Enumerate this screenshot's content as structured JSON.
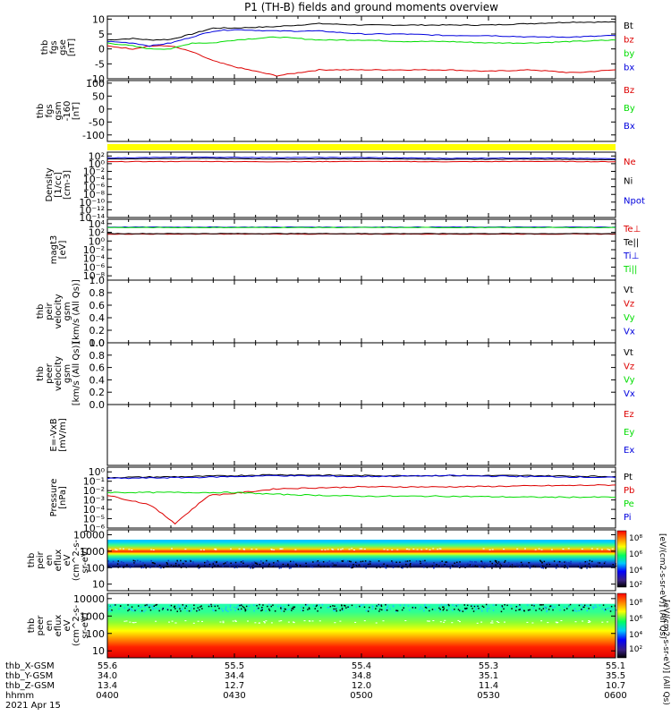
{
  "title": "P1 (TH-B) fields and ground moments overview",
  "colors": {
    "black": "#000000",
    "red": "#dd0000",
    "green": "#00dd00",
    "blue": "#0000dd",
    "yellow": "#ffff00"
  },
  "time_axis": {
    "ticks": [
      "0400",
      "0430",
      "0500",
      "0530",
      "0600"
    ],
    "row_labels": [
      "thb_X-GSM",
      "thb_Y-GSM",
      "thb_Z-GSM",
      "hhmm",
      "2021 Apr 15"
    ],
    "rows": [
      [
        "55.6",
        "55.5",
        "55.4",
        "55.3",
        "55.1"
      ],
      [
        "34.0",
        "34.4",
        "34.8",
        "35.1",
        "35.5"
      ],
      [
        "13.4",
        "12.7",
        "12.0",
        "11.4",
        "10.7"
      ],
      [
        "0400",
        "0430",
        "0500",
        "0530",
        "0600"
      ]
    ]
  },
  "colorbar": {
    "title": "[eV/(cm2-s-sr-eV)] (All Qs)",
    "title_upper": "[eV/(cm2-s-sr-eV)] (All Qs)",
    "ticks": [
      "10⁸",
      "10⁶",
      "10⁴",
      "10²"
    ],
    "ticks_lower": [
      "10⁸",
      "10⁶",
      "10⁴",
      "10²"
    ]
  },
  "chart_data": [
    {
      "id": "fgs",
      "type": "line",
      "ylabel_lines": [
        "thb",
        "fgs",
        "gse",
        "[nT]"
      ],
      "ylim": [
        -10,
        11
      ],
      "yticks": [
        "10",
        "5",
        "0",
        "-5",
        "-10"
      ],
      "ytick_values": [
        10,
        5,
        0,
        -5,
        -10
      ],
      "series": [
        {
          "name": "Bt",
          "color": "#000000",
          "x": [
            0,
            6,
            10,
            15,
            20,
            25,
            30,
            40,
            50,
            60,
            70,
            80,
            90,
            100,
            110,
            120
          ],
          "values": [
            3,
            3.5,
            3,
            3.2,
            5,
            7,
            7,
            7.5,
            8.5,
            8,
            8,
            8,
            8,
            8.5,
            9,
            9
          ]
        },
        {
          "name": "bz",
          "color": "#dd0000",
          "x": [
            0,
            6,
            10,
            15,
            20,
            25,
            30,
            40,
            50,
            60,
            70,
            80,
            90,
            100,
            110,
            120
          ],
          "values": [
            1,
            0,
            1,
            1,
            -1,
            -4,
            -6,
            -9,
            -7,
            -7,
            -7,
            -7,
            -7.5,
            -7,
            -8,
            -7
          ]
        },
        {
          "name": "by",
          "color": "#00dd00",
          "x": [
            0,
            6,
            10,
            15,
            20,
            25,
            30,
            40,
            50,
            60,
            70,
            80,
            90,
            100,
            110,
            120
          ],
          "values": [
            2,
            1,
            0,
            0,
            2,
            2,
            3,
            4,
            3,
            3,
            2.5,
            2.5,
            2,
            2,
            2.5,
            3
          ]
        },
        {
          "name": "bx",
          "color": "#0000dd",
          "x": [
            0,
            6,
            10,
            15,
            20,
            25,
            30,
            40,
            50,
            60,
            70,
            80,
            90,
            100,
            110,
            120
          ],
          "values": [
            2.5,
            2,
            1,
            2,
            4,
            6,
            6.5,
            6,
            6,
            5,
            5,
            4.5,
            4.5,
            4,
            4,
            4.5
          ]
        }
      ]
    },
    {
      "id": "fgs_gsm",
      "type": "line",
      "ylabel_lines": [
        "thb",
        "fgs",
        "gsm",
        "-160",
        "[nT]"
      ],
      "ylim": [
        -125,
        110
      ],
      "yticks": [
        "100",
        "50",
        "0",
        "-50",
        "-100"
      ],
      "ytick_values": [
        100,
        50,
        0,
        -50,
        -100
      ],
      "series": [
        {
          "name": "Bz",
          "color": "#dd0000",
          "x": [],
          "values": []
        },
        {
          "name": "By",
          "color": "#00dd00",
          "x": [],
          "values": []
        },
        {
          "name": "Bx",
          "color": "#0000dd",
          "x": [],
          "values": []
        }
      ]
    },
    {
      "id": "density",
      "type": "line",
      "log": true,
      "ylabel_lines": [
        "Density",
        "[1/cc]",
        "[cm-3]"
      ],
      "ylim": [
        -14,
        3
      ],
      "yticks": [
        "10²",
        "10⁰",
        "10⁻²",
        "10⁻⁴",
        "10⁻⁶",
        "10⁻⁸",
        "10⁻¹⁰",
        "10⁻¹²",
        "10⁻¹⁴"
      ],
      "ytick_values": [
        2,
        0,
        -2,
        -4,
        -6,
        -8,
        -10,
        -12,
        -14
      ],
      "series": [
        {
          "name": "Ne",
          "color": "#dd0000",
          "x": [
            0,
            20,
            40,
            60,
            80,
            100,
            120
          ],
          "values": [
            0.5,
            0.6,
            0.5,
            0.6,
            0.5,
            0.6,
            0.5
          ]
        },
        {
          "name": "Ni",
          "color": "#000000",
          "x": [
            0,
            20,
            40,
            60,
            80,
            100,
            120
          ],
          "values": [
            1.2,
            1.4,
            1.2,
            1.3,
            1.1,
            1.2,
            1.0
          ]
        },
        {
          "name": "Npot",
          "color": "#0000dd",
          "x": [
            0,
            20,
            40,
            60,
            80,
            100,
            120
          ],
          "values": [
            1.5,
            1.7,
            1.6,
            1.6,
            1.4,
            1.5,
            1.3
          ]
        }
      ]
    },
    {
      "id": "temp",
      "type": "line",
      "log": true,
      "ylabel_lines": [
        "magt3",
        "[eV]"
      ],
      "ylim": [
        -9,
        5
      ],
      "yticks": [
        "10⁴",
        "10²",
        "10⁰",
        "10⁻²",
        "10⁻⁴",
        "10⁻⁶",
        "10⁻⁸"
      ],
      "ytick_values": [
        4,
        2,
        0,
        -2,
        -4,
        -6,
        -8
      ],
      "series": [
        {
          "name": "Te⊥",
          "color": "#dd0000",
          "x": [
            0,
            40,
            80,
            120
          ],
          "values": [
            1.6,
            1.6,
            1.6,
            1.6
          ]
        },
        {
          "name": "Te||",
          "color": "#000000",
          "x": [
            0,
            40,
            80,
            120
          ],
          "values": [
            1.7,
            1.7,
            1.7,
            1.7
          ]
        },
        {
          "name": "Ti⊥",
          "color": "#0000dd",
          "x": [
            0,
            40,
            80,
            120
          ],
          "values": [
            3.2,
            3.2,
            3.2,
            3.2
          ]
        },
        {
          "name": "Ti||",
          "color": "#00dd00",
          "x": [
            0,
            40,
            80,
            120
          ],
          "values": [
            3.1,
            3.1,
            3.1,
            3.1
          ]
        }
      ]
    },
    {
      "id": "peir_v",
      "type": "line",
      "ylabel_lines": [
        "thb",
        "peir",
        "velocity",
        "gsm",
        "[km/s (All Qs)]"
      ],
      "ylim": [
        0,
        1
      ],
      "yticks": [
        "1.0",
        "0.8",
        "0.6",
        "0.4",
        "0.2",
        "0.0"
      ],
      "ytick_values": [
        1,
        0.8,
        0.6,
        0.4,
        0.2,
        0
      ],
      "series": [
        {
          "name": "Vt",
          "color": "#000000",
          "x": [],
          "values": []
        },
        {
          "name": "Vz",
          "color": "#dd0000",
          "x": [],
          "values": []
        },
        {
          "name": "Vy",
          "color": "#00dd00",
          "x": [],
          "values": []
        },
        {
          "name": "Vx",
          "color": "#0000dd",
          "x": [],
          "values": []
        }
      ]
    },
    {
      "id": "peer_v",
      "type": "line",
      "ylabel_lines": [
        "thb",
        "peer",
        "velocity",
        "gsm",
        "[km/s (All Qs)]"
      ],
      "ylim": [
        0,
        1
      ],
      "yticks": [
        "1.0",
        "0.8",
        "0.6",
        "0.4",
        "0.2",
        "0.0"
      ],
      "ytick_values": [
        1,
        0.8,
        0.6,
        0.4,
        0.2,
        0
      ],
      "series": [
        {
          "name": "Vt",
          "color": "#000000",
          "x": [],
          "values": []
        },
        {
          "name": "Vz",
          "color": "#dd0000",
          "x": [],
          "values": []
        },
        {
          "name": "Vy",
          "color": "#00dd00",
          "x": [],
          "values": []
        },
        {
          "name": "Vx",
          "color": "#0000dd",
          "x": [],
          "values": []
        }
      ]
    },
    {
      "id": "efield",
      "type": "line",
      "ylabel_lines": [
        "E=-VxB",
        "[mV/m]"
      ],
      "ylim": [
        0,
        1
      ],
      "yticks": [],
      "ytick_values": [],
      "series": [
        {
          "name": "Ez",
          "color": "#dd0000",
          "x": [],
          "values": []
        },
        {
          "name": "Ey",
          "color": "#00dd00",
          "x": [],
          "values": []
        },
        {
          "name": "Ex",
          "color": "#0000dd",
          "x": [],
          "values": []
        }
      ]
    },
    {
      "id": "pressure",
      "type": "line",
      "log": true,
      "ylabel_lines": [
        "Pressure",
        "[nPa]"
      ],
      "ylim": [
        -6,
        0.5
      ],
      "yticks": [
        "10⁰",
        "10⁻¹",
        "10⁻²",
        "10⁻³",
        "10⁻⁴",
        "10⁻⁵",
        "10⁻⁶"
      ],
      "ytick_values": [
        0,
        -1,
        -2,
        -3,
        -4,
        -5,
        -6
      ],
      "series": [
        {
          "name": "Pt",
          "color": "#000000",
          "x": [
            0,
            20,
            30,
            40,
            60,
            80,
            100,
            120
          ],
          "values": [
            -0.6,
            -0.5,
            -0.4,
            -0.3,
            -0.4,
            -0.4,
            -0.4,
            -0.5
          ]
        },
        {
          "name": "Pb",
          "color": "#dd0000",
          "x": [
            0,
            5,
            10,
            13,
            16,
            20,
            24,
            30,
            40,
            60,
            80,
            100,
            120
          ],
          "values": [
            -2.5,
            -3.0,
            -3.5,
            -4.5,
            -5.5,
            -4,
            -2.5,
            -2.3,
            -1.8,
            -1.6,
            -1.6,
            -1.5,
            -1.4
          ]
        },
        {
          "name": "Pe",
          "color": "#00dd00",
          "x": [
            0,
            30,
            40,
            60,
            80,
            100,
            120
          ],
          "values": [
            -2.2,
            -2.2,
            -2.4,
            -2.6,
            -2.6,
            -2.7,
            -2.7
          ]
        },
        {
          "name": "Pi",
          "color": "#0000dd",
          "x": [
            0,
            20,
            40,
            60,
            80,
            100,
            120
          ],
          "values": [
            -0.7,
            -0.6,
            -0.4,
            -0.5,
            -0.4,
            -0.5,
            -0.6
          ]
        }
      ]
    },
    {
      "id": "peir_en",
      "type": "heatmap",
      "ylabel_lines": [
        "thb",
        "peir",
        "en",
        "eflux",
        "eV",
        "(cm^2-s-",
        "sr-eV)"
      ],
      "yticks": [
        "10000",
        "1000",
        "100",
        "10"
      ],
      "ytick_values": [
        4,
        3,
        2,
        1
      ],
      "ylim": [
        0.6,
        4.3
      ],
      "band_log": [
        2.0,
        3.7
      ]
    },
    {
      "id": "peer_en",
      "type": "heatmap",
      "ylabel_lines": [
        "thb",
        "peer",
        "en",
        "eflux",
        "eV",
        "(cm^2-s-",
        "sr-eV)"
      ],
      "yticks": [
        "10000",
        "1000",
        "100",
        "10"
      ],
      "ytick_values": [
        4,
        3,
        2,
        1
      ],
      "ylim": [
        0.6,
        4.3
      ],
      "band_log": [
        0.6,
        3.7
      ]
    }
  ]
}
